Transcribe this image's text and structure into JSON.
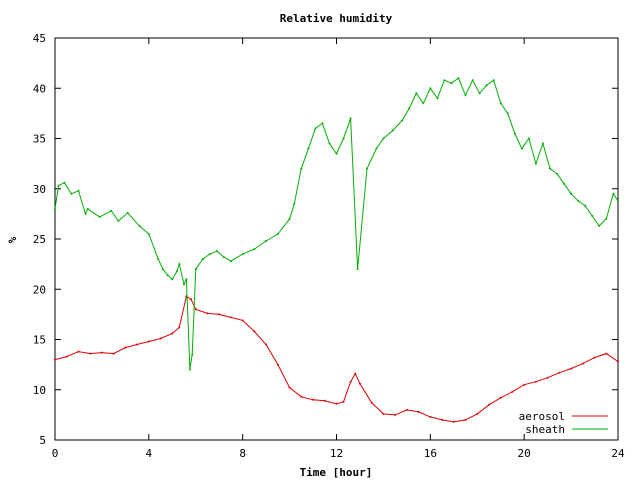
{
  "chart_data": {
    "type": "line",
    "title": "Relative humidity",
    "xlabel": "Time [hour]",
    "ylabel": "%",
    "xlim": [
      0,
      24
    ],
    "ylim": [
      5,
      45
    ],
    "xticks": [
      "0",
      "4",
      "8",
      "12",
      "16",
      "20",
      "24"
    ],
    "yticks": [
      "5",
      "10",
      "15",
      "20",
      "25",
      "30",
      "35",
      "40",
      "45"
    ],
    "grid": false,
    "legend_position": "bottom-right",
    "series": [
      {
        "name": "aerosol",
        "color": "#e00000",
        "x": [
          0,
          0.5,
          1,
          1.5,
          2,
          2.5,
          3,
          3.5,
          4,
          4.5,
          5,
          5.3,
          5.6,
          5.8,
          6,
          6.5,
          7,
          7.5,
          8,
          8.5,
          9,
          9.5,
          10,
          10.5,
          11,
          11.5,
          12,
          12.3,
          12.6,
          12.8,
          13,
          13.5,
          14,
          14.5,
          15,
          15.5,
          16,
          16.5,
          17,
          17.5,
          18,
          18.5,
          19,
          19.5,
          20,
          20.5,
          21,
          21.5,
          22,
          22.5,
          23,
          23.5,
          24
        ],
        "y": [
          13,
          13.3,
          13.8,
          13.6,
          13.7,
          13.6,
          14.2,
          14.5,
          14.8,
          15.1,
          15.6,
          16.2,
          19.3,
          19,
          18,
          17.6,
          17.5,
          17.2,
          16.9,
          15.8,
          14.5,
          12.5,
          10.2,
          9.3,
          9,
          8.9,
          8.6,
          8.8,
          10.8,
          11.6,
          10.6,
          8.7,
          7.6,
          7.5,
          8,
          7.8,
          7.3,
          7,
          6.8,
          7,
          7.6,
          8.5,
          9.2,
          9.8,
          10.5,
          10.8,
          11.2,
          11.7,
          12.1,
          12.6,
          13.2,
          13.6,
          12.8
        ]
      },
      {
        "name": "sheath",
        "color": "#00b000",
        "x": [
          0,
          0.15,
          0.4,
          0.7,
          1,
          1.3,
          1.4,
          1.9,
          2.4,
          2.7,
          3.1,
          3.6,
          4,
          4.4,
          4.6,
          4.8,
          5,
          5.2,
          5.3,
          5.5,
          5.6,
          5.75,
          5.85,
          6,
          6.3,
          6.6,
          6.9,
          7.2,
          7.5,
          8,
          8.5,
          9,
          9.5,
          10,
          10.2,
          10.5,
          10.8,
          11.1,
          11.4,
          11.7,
          12,
          12.3,
          12.6,
          12.9,
          13.3,
          13.7,
          14,
          14.4,
          14.8,
          15.1,
          15.4,
          15.7,
          16,
          16.3,
          16.6,
          16.9,
          17.2,
          17.5,
          17.8,
          18.1,
          18.4,
          18.7,
          19,
          19.3,
          19.6,
          19.9,
          20.2,
          20.5,
          20.8,
          21.1,
          21.4,
          21.7,
          22,
          22.3,
          22.6,
          22.9,
          23.2,
          23.5,
          23.8,
          24
        ],
        "y": [
          28,
          30.3,
          30.6,
          29.5,
          29.8,
          27.5,
          28,
          27.2,
          27.8,
          26.8,
          27.6,
          26.3,
          25.5,
          23,
          22,
          21.4,
          21,
          21.8,
          22.5,
          20.5,
          21,
          12,
          13.5,
          22,
          23,
          23.5,
          23.8,
          23.2,
          22.8,
          23.5,
          24,
          24.8,
          25.5,
          27,
          28.5,
          32,
          34,
          36,
          36.5,
          34.5,
          33.5,
          35,
          37,
          22,
          32,
          34,
          35,
          35.8,
          36.8,
          38,
          39.5,
          38.5,
          40,
          39,
          40.8,
          40.5,
          41,
          39.3,
          40.8,
          39.5,
          40.3,
          40.8,
          38.5,
          37.5,
          35.5,
          34,
          35,
          32.5,
          34.5,
          32,
          31.5,
          30.5,
          29.5,
          28.8,
          28.3,
          27.3,
          26.3,
          27,
          29.5,
          28.8
        ]
      }
    ]
  }
}
